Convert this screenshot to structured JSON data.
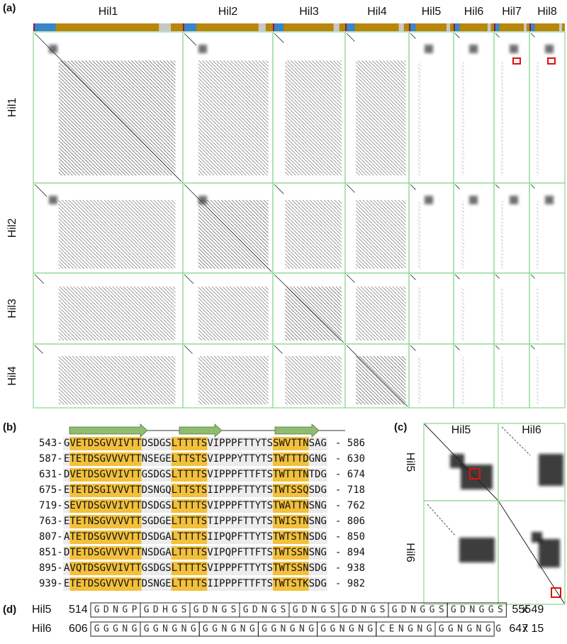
{
  "panel_a": {
    "label": "(a)",
    "columns": [
      "Hil1",
      "Hil2",
      "Hil3",
      "Hil4",
      "Hil5",
      "Hil6",
      "Hil7",
      "Hil8"
    ],
    "rows": [
      "Hil1",
      "Hil2",
      "Hil3",
      "Hil4"
    ]
  },
  "panel_b": {
    "label": "(b)",
    "rows": [
      {
        "start": "543-",
        "sequence": "GVETDSGVVIVTTDSDGSLTTTTSVIPPPFTTYTSSWVTTNSAG",
        "end": "- 586"
      },
      {
        "start": "587-",
        "sequence": "ETETDSGVVVVTTNSEGELTTSTSVIPPPYTTYTSTWTTTDGNG",
        "end": "- 630"
      },
      {
        "start": "631-",
        "sequence": "DVETDSGVVIVTTGSDGSLTTTTSVIPPPFTTFTSTWTTTNTDG",
        "end": "- 674"
      },
      {
        "start": "675-",
        "sequence": "ETETDSGIVVVTTDSNGQLTTSTSIIPPPFTTYTSTWTSSQSDG",
        "end": "- 718"
      },
      {
        "start": "719-",
        "sequence": "SEVTDSGVVIVTTDSDGSLTTTTSVIPPPFTTYTSTWATTNSNG",
        "end": "- 762"
      },
      {
        "start": "763-",
        "sequence": "ETETNSGVVVVTTSGDGELTTTTSTIPPPFTTYTSTWISTNSNG",
        "end": "- 806"
      },
      {
        "start": "807-",
        "sequence": "ATETDSGVVVVTTDSDGALTTTTSIIPQPFTTYTSTWTSTNSDG",
        "end": "- 850"
      },
      {
        "start": "851-",
        "sequence": "DTETDSGVVVVTTNSDGALTTTTSVIPQPFTTFTSTWTSSNSNG",
        "end": "- 894"
      },
      {
        "start": "895-",
        "sequence": "AVQTDSGVVIVTTGSDGSLTTTTSVIPPPFTTYTSTWTSSNSDG",
        "end": "- 938"
      },
      {
        "start": "939-",
        "sequence": "ETETDSGVVVVTTDSNGELTTTTSIIPPPFTTFTSTWTSTKSDG",
        "end": "- 982"
      }
    ]
  },
  "panel_c": {
    "label": "(c)",
    "columns": [
      "Hil5",
      "Hil6"
    ],
    "rows": [
      "Hil5",
      "Hil6"
    ]
  },
  "panel_d": {
    "label": "(d)",
    "rows": [
      {
        "name": "Hil5",
        "start": "514",
        "repeats": [
          "GDNGP",
          "GDHGS",
          "GDNGS",
          "GDNGS",
          "GDNGS",
          "GDNGS",
          "GDNGGS",
          "GDNGGS"
        ],
        "end": "555",
        "count": "x 49"
      },
      {
        "name": "Hil6",
        "start": "606",
        "repeats": [
          "GGGNG",
          "GGNGNG",
          "GGNGNG",
          "GGNGNG",
          "GGNGNG",
          "CENGNG",
          "GGNGNG"
        ],
        "tail": "G",
        "end": "647",
        "count": "x 15"
      }
    ]
  }
}
